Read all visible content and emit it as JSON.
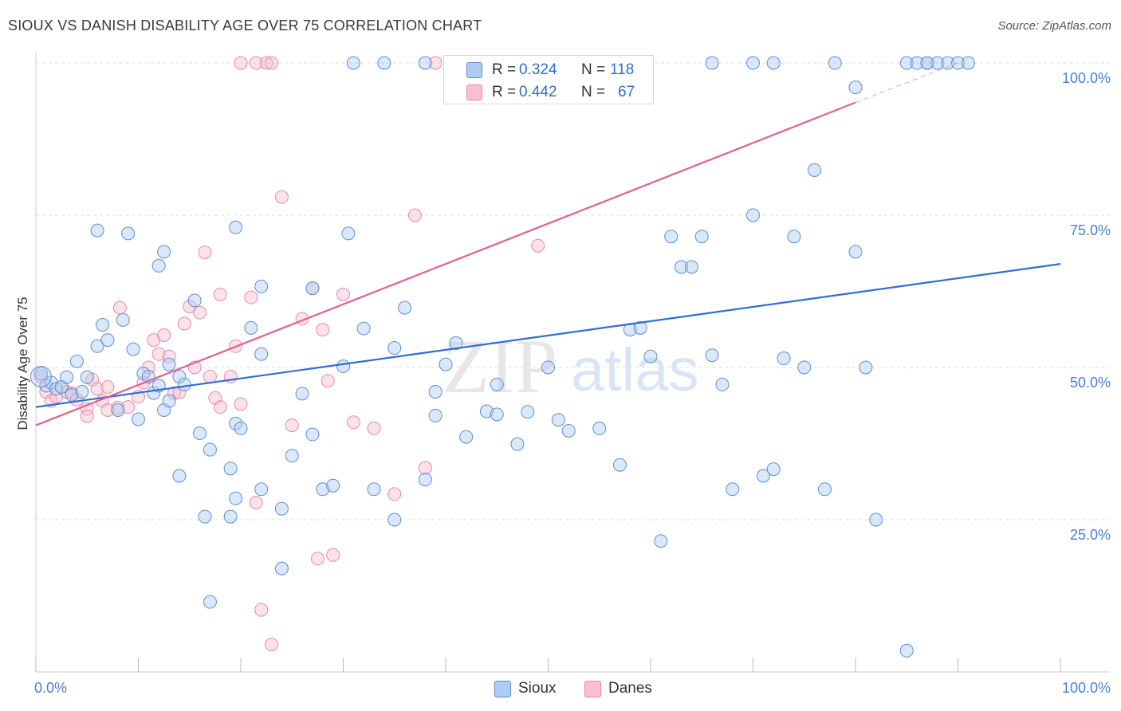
{
  "title": "SIOUX VS DANISH DISABILITY AGE OVER 75 CORRELATION CHART",
  "source": "Source: ZipAtlas.com",
  "watermark": {
    "zip": "ZIP",
    "atlas": "atlas"
  },
  "colors": {
    "sioux_fill": "#aecbf2",
    "sioux_stroke": "#5b8fd8",
    "sioux_line": "#2f6fd0",
    "danes_fill": "#f7bfd0",
    "danes_stroke": "#e88aa8",
    "danes_line": "#e0628c",
    "tick_text": "#4a7fd4",
    "grid": "#dddddd"
  },
  "legend": {
    "rows": [
      {
        "r_label": "R =",
        "r_value": "0.324",
        "n_label": "N =",
        "n_value": "118"
      },
      {
        "r_label": "R =",
        "r_value": "0.442",
        "n_label": "N =",
        "n_value": "67"
      }
    ]
  },
  "bottom_legend": {
    "sioux": "Sioux",
    "danes": "Danes"
  },
  "chart_data": {
    "type": "scatter",
    "title": "SIOUX VS DANISH DISABILITY AGE OVER 75 CORRELATION CHART",
    "xlabel": "",
    "ylabel": "Disability Age Over 75",
    "xlim": [
      0,
      100
    ],
    "ylim": [
      0,
      100
    ],
    "x_tick_labels": [
      "0.0%",
      "100.0%"
    ],
    "y_ticks": [
      25,
      50,
      75,
      100
    ],
    "y_tick_labels": [
      "25.0%",
      "50.0%",
      "75.0%",
      "100.0%"
    ],
    "grid": true,
    "legend_position": "top-center",
    "series": [
      {
        "name": "Sioux",
        "r": 0.324,
        "n": 118,
        "trend": {
          "x": [
            0,
            100
          ],
          "y": [
            43.5,
            67
          ]
        },
        "points": [
          [
            0.5,
            49
          ],
          [
            1,
            47
          ],
          [
            1.5,
            47.5
          ],
          [
            2,
            46.5
          ],
          [
            2.5,
            46.8
          ],
          [
            3,
            48.4
          ],
          [
            3.5,
            45.5
          ],
          [
            4,
            51
          ],
          [
            4.5,
            46
          ],
          [
            5,
            48.4
          ],
          [
            6,
            53.5
          ],
          [
            6.5,
            57
          ],
          [
            7,
            54.5
          ],
          [
            8,
            43
          ],
          [
            8.5,
            57.8
          ],
          [
            9.5,
            53
          ],
          [
            10,
            41.5
          ],
          [
            10.5,
            49
          ],
          [
            11,
            48.5
          ],
          [
            11.5,
            45.8
          ],
          [
            12,
            47
          ],
          [
            12.5,
            43
          ],
          [
            13,
            44.5
          ],
          [
            13,
            50.5
          ],
          [
            14,
            48.5
          ],
          [
            14.5,
            47.2
          ],
          [
            15.5,
            61
          ],
          [
            16,
            39.2
          ],
          [
            17,
            36.5
          ],
          [
            19,
            33.4
          ],
          [
            19.5,
            40.8
          ],
          [
            20,
            40
          ],
          [
            21,
            56.5
          ],
          [
            22,
            30
          ],
          [
            22,
            52.2
          ],
          [
            22,
            63.3
          ],
          [
            24,
            26.8
          ],
          [
            24,
            17
          ],
          [
            25,
            35.5
          ],
          [
            26,
            45.7
          ],
          [
            27,
            39
          ],
          [
            27,
            63
          ],
          [
            28,
            30
          ],
          [
            29,
            30.6
          ],
          [
            30,
            50.2
          ],
          [
            32,
            56.4
          ],
          [
            33,
            30
          ],
          [
            35,
            53.2
          ],
          [
            35,
            25
          ],
          [
            36,
            59.8
          ],
          [
            38,
            31.6
          ],
          [
            39,
            46
          ],
          [
            39,
            42.1
          ],
          [
            40,
            50.5
          ],
          [
            41,
            54
          ],
          [
            42,
            38.6
          ],
          [
            44,
            42.8
          ],
          [
            45,
            47.2
          ],
          [
            45,
            42.3
          ],
          [
            47,
            37.4
          ],
          [
            48,
            42.7
          ],
          [
            50,
            50
          ],
          [
            51,
            41.4
          ],
          [
            52,
            39.6
          ],
          [
            55,
            40
          ],
          [
            57,
            34
          ],
          [
            58,
            56.2
          ],
          [
            59,
            56.5
          ],
          [
            60,
            51.8
          ],
          [
            61,
            21.5
          ],
          [
            62,
            71.5
          ],
          [
            63,
            66.5
          ],
          [
            64,
            66.5
          ],
          [
            65,
            71.5
          ],
          [
            66,
            52
          ],
          [
            67,
            47.2
          ],
          [
            68,
            30
          ],
          [
            70,
            75
          ],
          [
            71,
            32.2
          ],
          [
            72,
            33.3
          ],
          [
            73,
            51.5
          ],
          [
            74,
            71.5
          ],
          [
            75,
            50
          ],
          [
            76,
            82.4
          ],
          [
            77,
            30
          ],
          [
            80,
            69
          ],
          [
            80,
            96
          ],
          [
            81,
            50
          ],
          [
            82,
            25
          ],
          [
            85,
            3.5
          ],
          [
            85,
            100
          ],
          [
            86,
            100
          ],
          [
            87,
            100
          ],
          [
            88,
            100
          ],
          [
            89,
            100
          ],
          [
            90,
            100
          ],
          [
            91,
            100
          ],
          [
            9,
            72
          ],
          [
            6,
            72.5
          ],
          [
            12.5,
            69
          ],
          [
            12,
            66.7
          ],
          [
            19.5,
            73
          ],
          [
            30.5,
            72
          ],
          [
            31,
            100
          ],
          [
            34,
            100
          ],
          [
            38,
            100
          ],
          [
            42,
            100
          ],
          [
            52,
            100
          ],
          [
            66,
            100
          ],
          [
            70,
            100
          ],
          [
            72,
            100
          ],
          [
            78,
            100
          ],
          [
            87,
            100
          ],
          [
            17,
            11.5
          ],
          [
            16.5,
            25.5
          ],
          [
            19,
            25.5
          ],
          [
            19.5,
            28.5
          ],
          [
            14,
            32.2
          ]
        ]
      },
      {
        "name": "Danes",
        "r": 0.442,
        "n": 67,
        "trend": {
          "x": [
            0,
            80
          ],
          "y": [
            40.5,
            93.5
          ]
        },
        "trend_dashed": {
          "x": [
            80,
            90
          ],
          "y": [
            93.5,
            100
          ]
        },
        "points": [
          [
            0.5,
            48.5
          ],
          [
            1,
            46
          ],
          [
            1.5,
            44.5
          ],
          [
            2,
            45.2
          ],
          [
            2.5,
            46.8
          ],
          [
            3,
            46
          ],
          [
            3.5,
            45.8
          ],
          [
            4,
            44.7
          ],
          [
            5,
            43.2
          ],
          [
            5.5,
            48
          ],
          [
            6,
            46.5
          ],
          [
            6.5,
            44.5
          ],
          [
            7,
            46.8
          ],
          [
            8,
            43.4
          ],
          [
            8.2,
            59.8
          ],
          [
            9,
            43.5
          ],
          [
            10,
            45.2
          ],
          [
            10.5,
            47.5
          ],
          [
            11,
            50
          ],
          [
            11.5,
            54.5
          ],
          [
            12,
            52.2
          ],
          [
            12.5,
            55.3
          ],
          [
            13,
            51.8
          ],
          [
            13.5,
            45.8
          ],
          [
            14,
            45.9
          ],
          [
            14.5,
            57.2
          ],
          [
            15,
            60
          ],
          [
            15.5,
            50
          ],
          [
            16,
            59
          ],
          [
            16.5,
            68.9
          ],
          [
            17,
            48.5
          ],
          [
            17.5,
            45
          ],
          [
            18,
            43.5
          ],
          [
            18,
            62
          ],
          [
            19,
            48.5
          ],
          [
            19.5,
            53.5
          ],
          [
            20,
            44
          ],
          [
            21,
            61.5
          ],
          [
            21.5,
            27.8
          ],
          [
            22,
            10.2
          ],
          [
            23,
            4.5
          ],
          [
            24,
            78
          ],
          [
            25,
            40.5
          ],
          [
            26,
            58
          ],
          [
            27,
            63
          ],
          [
            27.5,
            18.6
          ],
          [
            28,
            56.2
          ],
          [
            28.5,
            47.8
          ],
          [
            29,
            19.2
          ],
          [
            30,
            62
          ],
          [
            31,
            41
          ],
          [
            33,
            40
          ],
          [
            35,
            29.2
          ],
          [
            37,
            75
          ],
          [
            38,
            33.5
          ],
          [
            49,
            70
          ],
          [
            21.5,
            100
          ],
          [
            22.5,
            100
          ],
          [
            23,
            100
          ],
          [
            39,
            100
          ],
          [
            50,
            100
          ],
          [
            52,
            100
          ],
          [
            55,
            100
          ],
          [
            58,
            100
          ],
          [
            20,
            100
          ],
          [
            5,
            42
          ],
          [
            7,
            43
          ]
        ]
      }
    ]
  }
}
